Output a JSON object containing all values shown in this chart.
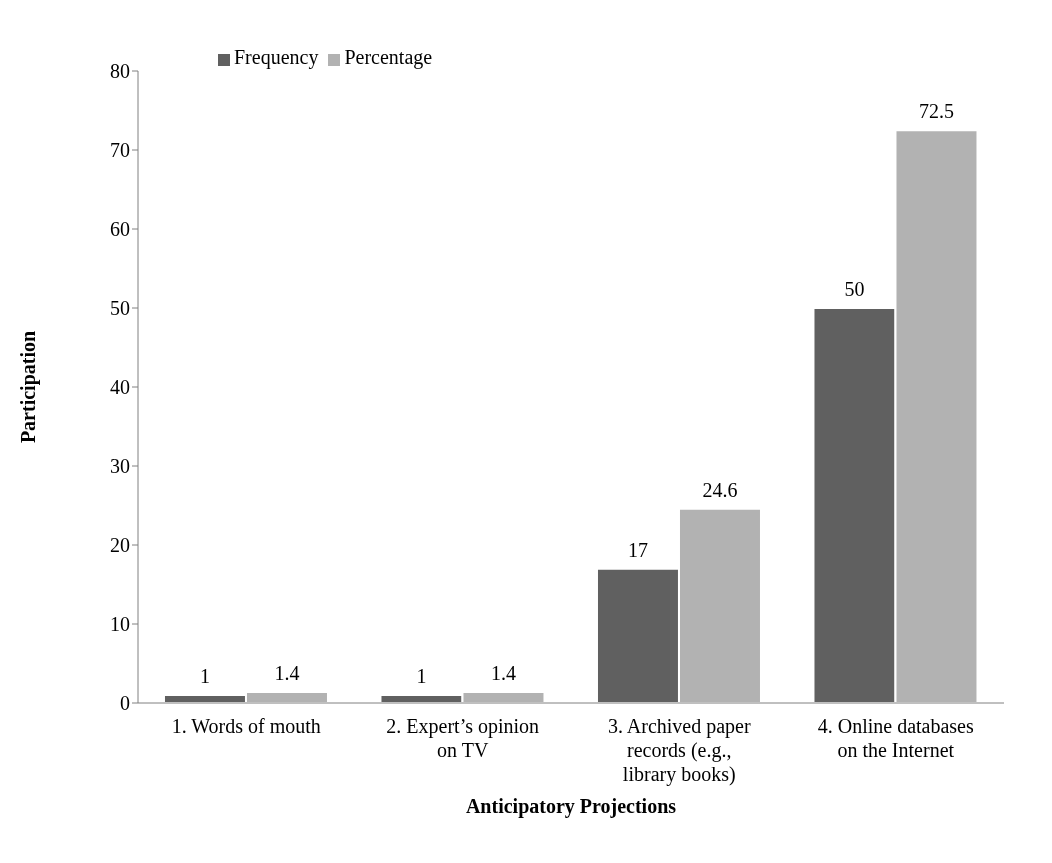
{
  "chart_data": {
    "type": "bar",
    "xlabel": "Anticipatory Projections",
    "ylabel": "Participation",
    "categories": [
      "1. Words of mouth",
      "2. Expert’s opinion on TV",
      "3. Archived paper records (e.g., library books)",
      "4. Online databases on the Internet"
    ],
    "series": [
      {
        "name": "Frequency",
        "color": "#606060",
        "values": [
          1,
          1,
          17,
          50
        ]
      },
      {
        "name": "Percentage",
        "color": "#b2b2b2",
        "values": [
          1.4,
          1.4,
          24.6,
          72.5
        ]
      }
    ],
    "ylim": [
      0,
      80
    ],
    "yticks": [
      0,
      10,
      20,
      30,
      40,
      50,
      60,
      70,
      80
    ],
    "grid": false,
    "legend": "top left",
    "data_labels": true
  }
}
